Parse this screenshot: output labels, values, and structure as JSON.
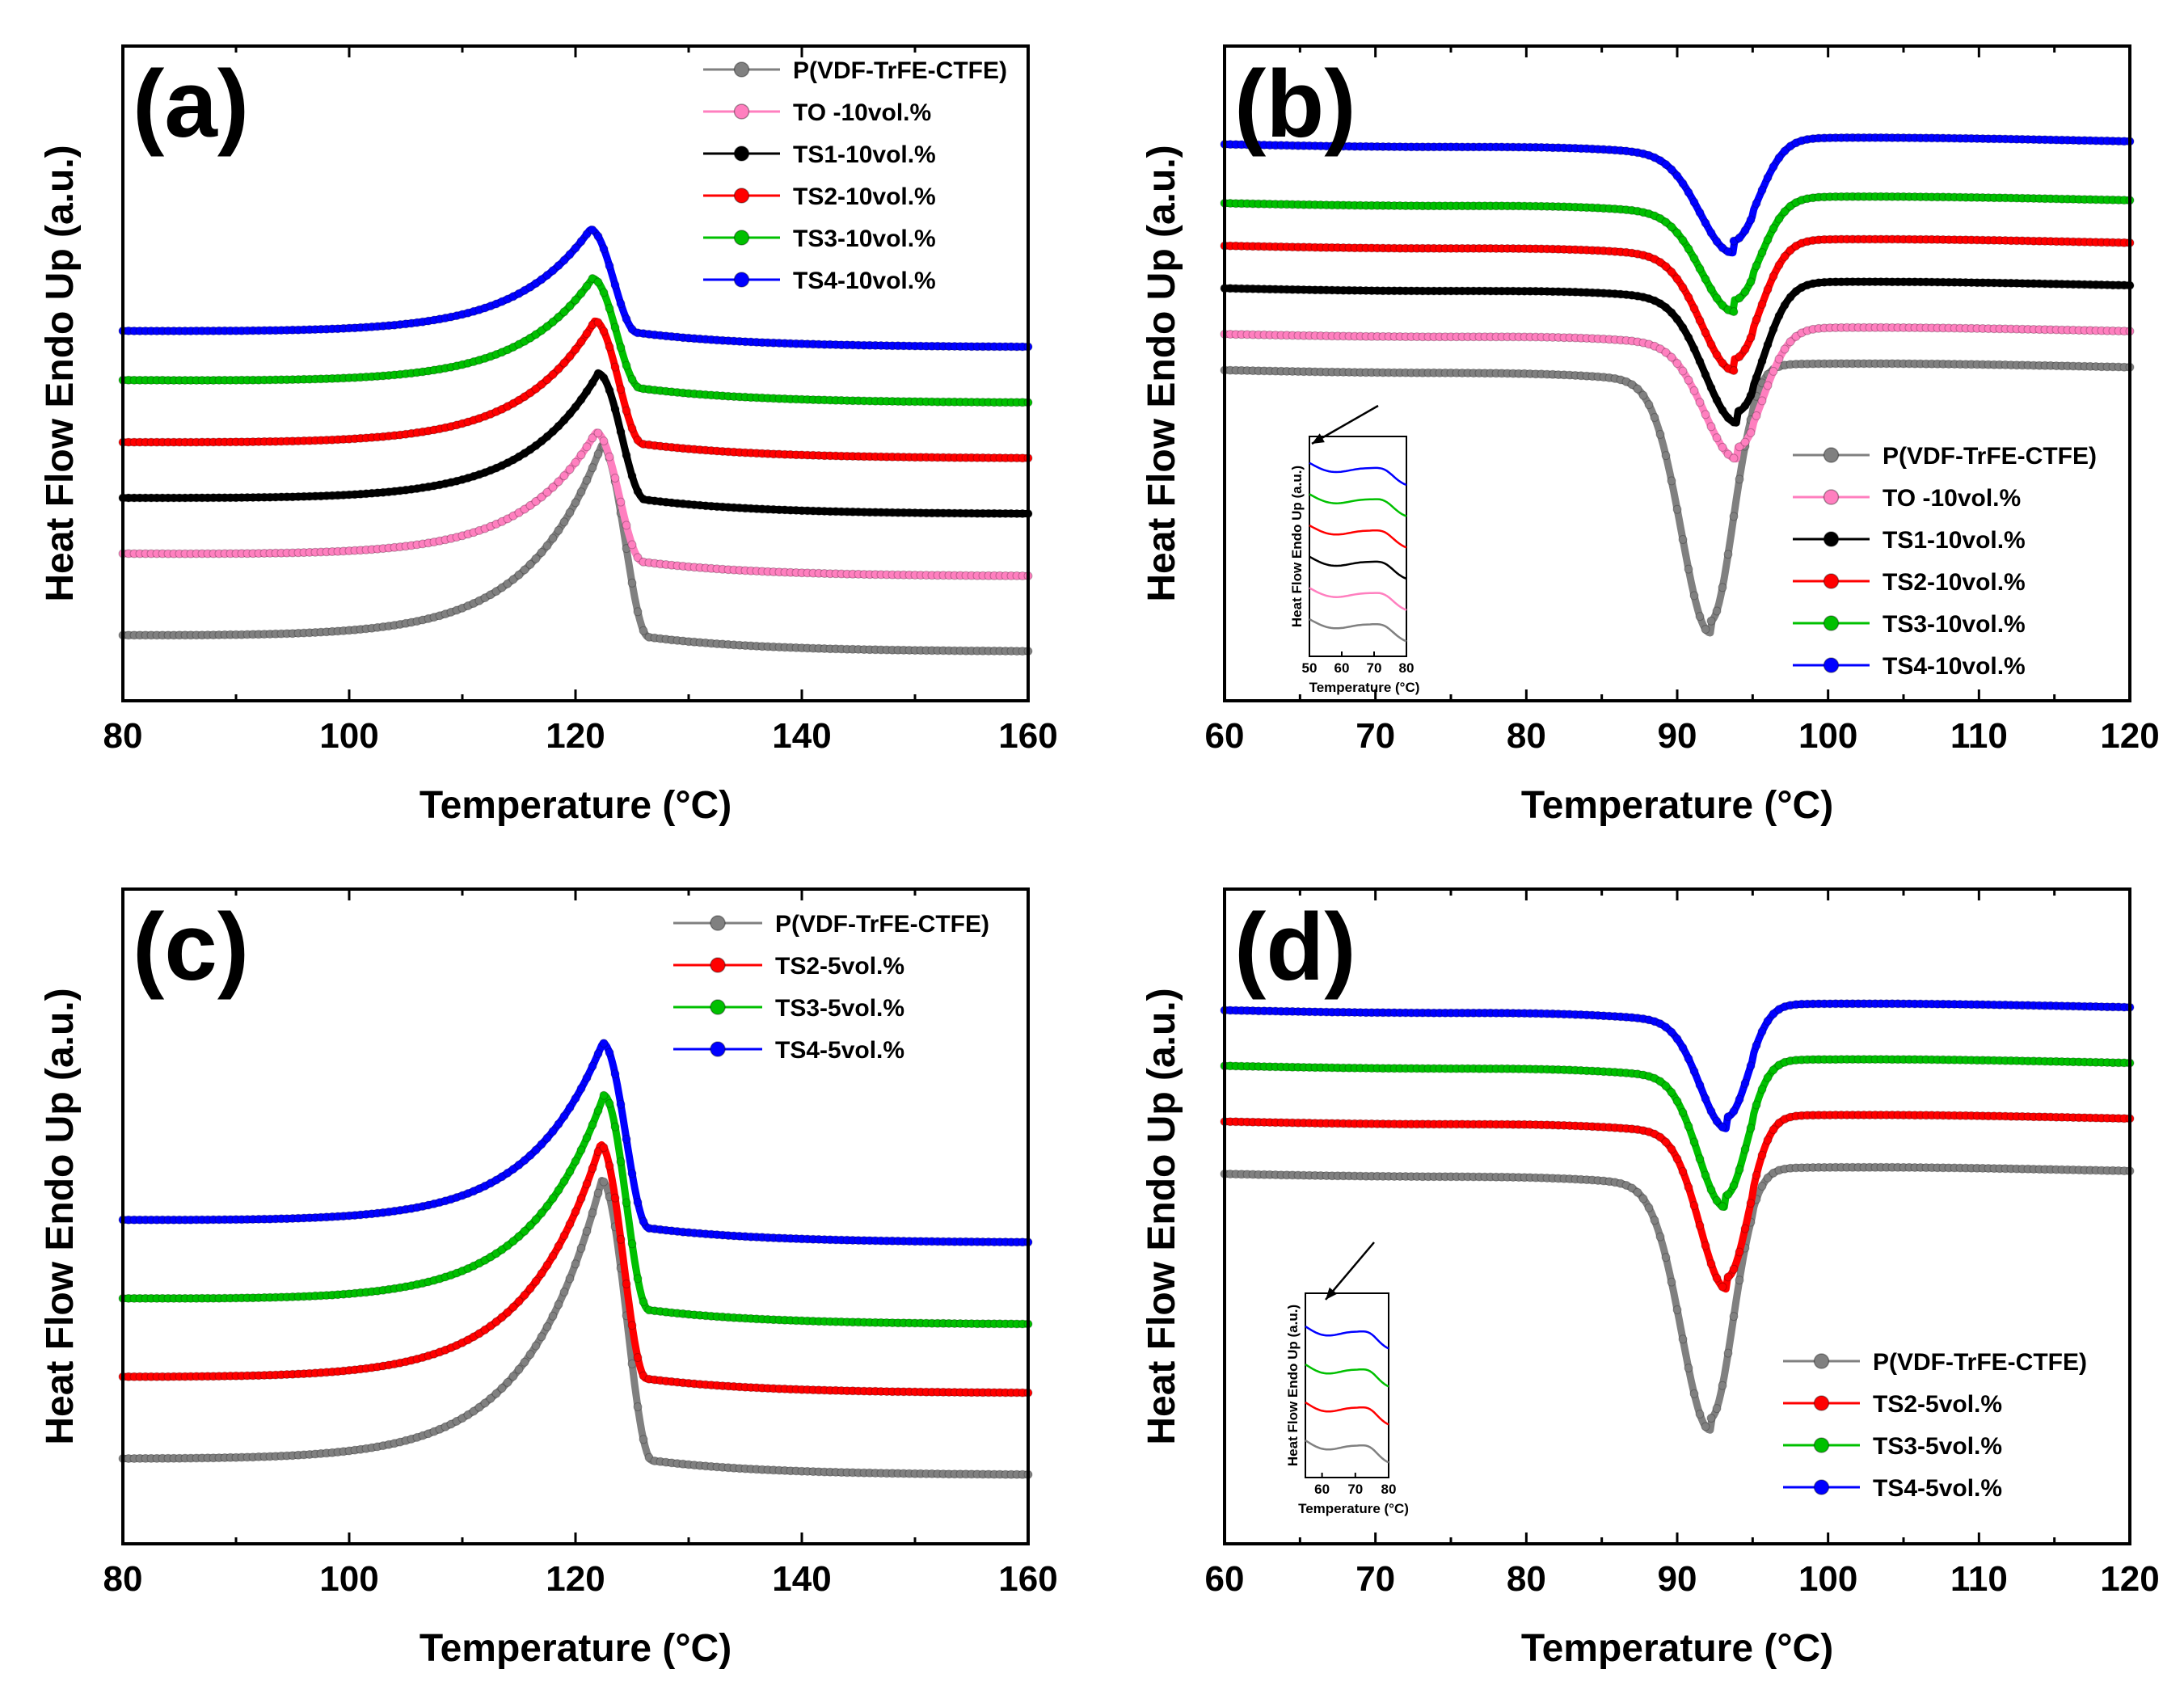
{
  "figure": {
    "colors": {
      "P(VDF-TrFE-CTFE)": "#808080",
      "TO": "#ff7fbf",
      "TS1": "#000000",
      "TS2": "#ff0000",
      "TS3": "#00c000",
      "TS4": "#0000ff"
    }
  },
  "chart_data": [
    {
      "panel": "(a)",
      "type": "line",
      "title": "",
      "xlabel": "Temperature (°C)",
      "ylabel": "Heat Flow Endo Up (a.u.)",
      "xlim": [
        80,
        160
      ],
      "ylim": [
        0,
        10
      ],
      "xticks": [
        80,
        100,
        120,
        140,
        160
      ],
      "legend_position": "top-right",
      "peak_type": "endo",
      "series": [
        {
          "name": "P(VDF-TrFE-CTFE)",
          "color_key": "P(VDF-TrFE-CTFE)",
          "base_left": 1.0,
          "base_right": 0.75,
          "peak_x": 122.3,
          "peak_y": 3.9,
          "end_x": 126.5
        },
        {
          "name": "TO  -10vol.%",
          "color_key": "TO",
          "base_left": 2.25,
          "base_right": 1.9,
          "peak_x": 121.8,
          "peak_y": 4.1,
          "end_x": 126.0
        },
        {
          "name": "TS1-10vol.%",
          "color_key": "TS1",
          "base_left": 3.1,
          "base_right": 2.85,
          "peak_x": 122.0,
          "peak_y": 5.0,
          "end_x": 126.2
        },
        {
          "name": "TS2-10vol.%",
          "color_key": "TS2",
          "base_left": 3.95,
          "base_right": 3.7,
          "peak_x": 121.7,
          "peak_y": 5.8,
          "end_x": 126.0
        },
        {
          "name": "TS3-10vol.%",
          "color_key": "TS3",
          "base_left": 4.9,
          "base_right": 4.55,
          "peak_x": 121.5,
          "peak_y": 6.45,
          "end_x": 125.8
        },
        {
          "name": "TS4-10vol.%",
          "color_key": "TS4",
          "base_left": 5.65,
          "base_right": 5.4,
          "peak_x": 121.3,
          "peak_y": 7.2,
          "end_x": 125.5
        }
      ]
    },
    {
      "panel": "(b)",
      "type": "line",
      "title": "",
      "xlabel": "Temperature (°C)",
      "ylabel": "Heat Flow Endo Up (a.u.)",
      "xlim": [
        60,
        120
      ],
      "ylim": [
        0,
        10
      ],
      "xticks": [
        60,
        70,
        80,
        90,
        100,
        110,
        120
      ],
      "legend_position": "bottom-right",
      "peak_type": "exo",
      "series": [
        {
          "name": "P(VDF-TrFE-CTFE)",
          "color_key": "P(VDF-TrFE-CTFE)",
          "baseline": 5.05,
          "dip_x": 92.2,
          "dip_y": 1.2,
          "width": 1.5
        },
        {
          "name": "TO  -10vol.%",
          "color_key": "TO",
          "baseline": 5.6,
          "dip_x": 94.0,
          "dip_y": 3.85,
          "width": 1.7
        },
        {
          "name": "TS1-10vol.%",
          "color_key": "TS1",
          "baseline": 6.3,
          "dip_x": 94.0,
          "dip_y": 4.4,
          "width": 1.7
        },
        {
          "name": "TS2-10vol.%",
          "color_key": "TS2",
          "baseline": 6.95,
          "dip_x": 93.8,
          "dip_y": 5.2,
          "width": 1.7
        },
        {
          "name": "TS3-10vol.%",
          "color_key": "TS3",
          "baseline": 7.6,
          "dip_x": 93.8,
          "dip_y": 6.1,
          "width": 1.7
        },
        {
          "name": "TS4-10vol.%",
          "color_key": "TS4",
          "baseline": 8.5,
          "dip_x": 93.7,
          "dip_y": 7.0,
          "width": 1.7
        }
      ],
      "inset": {
        "xlabel": "Temperature (°C)",
        "ylabel": "Heat Flow Endo Up (a.u.)",
        "xlim": [
          50,
          80
        ],
        "xticks": [
          50,
          60,
          70,
          80
        ]
      }
    },
    {
      "panel": "(c)",
      "type": "line",
      "title": "",
      "xlabel": "Temperature (°C)",
      "ylabel": "Heat Flow Endo Up (a.u.)",
      "xlim": [
        80,
        160
      ],
      "ylim": [
        0,
        10
      ],
      "xticks": [
        80,
        100,
        120,
        140,
        160
      ],
      "legend_position": "top-right",
      "peak_type": "endo",
      "series": [
        {
          "name": "P(VDF-TrFE-CTFE)",
          "color_key": "P(VDF-TrFE-CTFE)",
          "base_left": 1.3,
          "base_right": 1.05,
          "peak_x": 122.3,
          "peak_y": 5.55,
          "end_x": 126.8
        },
        {
          "name": "TS2-5vol.%",
          "color_key": "TS2",
          "base_left": 2.55,
          "base_right": 2.3,
          "peak_x": 122.2,
          "peak_y": 6.1,
          "end_x": 126.3
        },
        {
          "name": "TS3-5vol.%",
          "color_key": "TS3",
          "base_left": 3.75,
          "base_right": 3.35,
          "peak_x": 122.5,
          "peak_y": 6.85,
          "end_x": 126.5
        },
        {
          "name": "TS4-5vol.%",
          "color_key": "TS4",
          "base_left": 4.95,
          "base_right": 4.6,
          "peak_x": 122.4,
          "peak_y": 7.65,
          "end_x": 126.5
        }
      ]
    },
    {
      "panel": "(d)",
      "type": "line",
      "title": "",
      "xlabel": "Temperature (°C)",
      "ylabel": "Heat Flow Endo Up (a.u.)",
      "xlim": [
        60,
        120
      ],
      "ylim": [
        0,
        10
      ],
      "xticks": [
        60,
        70,
        80,
        90,
        100,
        110,
        120
      ],
      "legend_position": "bottom-right",
      "peak_type": "exo",
      "series": [
        {
          "name": "P(VDF-TrFE-CTFE)",
          "color_key": "P(VDF-TrFE-CTFE)",
          "baseline": 5.65,
          "dip_x": 92.2,
          "dip_y": 1.9,
          "width": 1.5
        },
        {
          "name": "TS2-5vol.%",
          "color_key": "TS2",
          "baseline": 6.45,
          "dip_x": 93.3,
          "dip_y": 4.05,
          "width": 1.4
        },
        {
          "name": "TS3-5vol.%",
          "color_key": "TS3",
          "baseline": 7.3,
          "dip_x": 93.2,
          "dip_y": 5.3,
          "width": 1.4
        },
        {
          "name": "TS4-5vol.%",
          "color_key": "TS4",
          "baseline": 8.15,
          "dip_x": 93.3,
          "dip_y": 6.5,
          "width": 1.4
        }
      ],
      "inset": {
        "xlabel": "Temperature (°C)",
        "ylabel": "Heat Flow Endo Up (a.u.)",
        "xlim": [
          55,
          80
        ],
        "xticks": [
          60,
          70,
          80
        ]
      }
    }
  ]
}
